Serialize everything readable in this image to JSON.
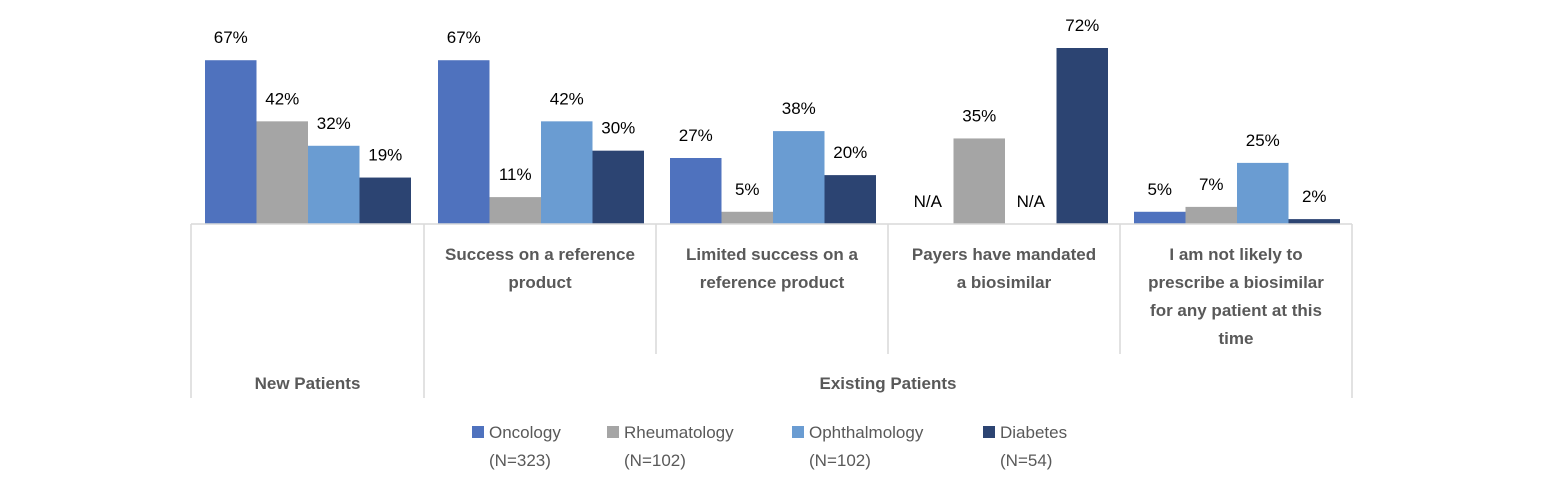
{
  "chart_data": {
    "type": "bar",
    "categories": [
      "",
      "Success on a reference product",
      "Limited success on a reference product",
      "Payers have mandated a biosimilar",
      "I am not likely to prescribe a biosimilar for any patient at this time"
    ],
    "category_lines": [
      [],
      [
        "Success on a reference",
        "product"
      ],
      [
        "Limited success on a",
        "reference product"
      ],
      [
        "Payers have mandated",
        "a biosimilar"
      ],
      [
        "I am not likely to",
        "prescribe a biosimilar",
        "for any patient at this",
        "time"
      ]
    ],
    "groups": [
      {
        "label": "New Patients",
        "categories": [
          0
        ]
      },
      {
        "label": "Existing Patients",
        "categories": [
          1,
          2,
          3,
          4
        ]
      }
    ],
    "series": [
      {
        "name": "Oncology",
        "n": "(N=323)",
        "color": "#4f72be",
        "values": [
          67,
          67,
          27,
          null,
          5
        ]
      },
      {
        "name": "Rheumatology",
        "n": "(N=102)",
        "color": "#a5a5a5",
        "values": [
          42,
          11,
          5,
          35,
          7
        ]
      },
      {
        "name": "Ophthalmology",
        "n": "(N=102)",
        "color": "#6a9cd2",
        "values": [
          32,
          42,
          38,
          null,
          25
        ]
      },
      {
        "name": "Diabetes",
        "n": "(N=54)",
        "color": "#2c4472",
        "values": [
          19,
          30,
          20,
          72,
          2
        ]
      }
    ],
    "missing_label": "N/A",
    "value_suffix": "%",
    "ylim": [
      0,
      72
    ],
    "legend_position": "bottom",
    "grid": false
  }
}
